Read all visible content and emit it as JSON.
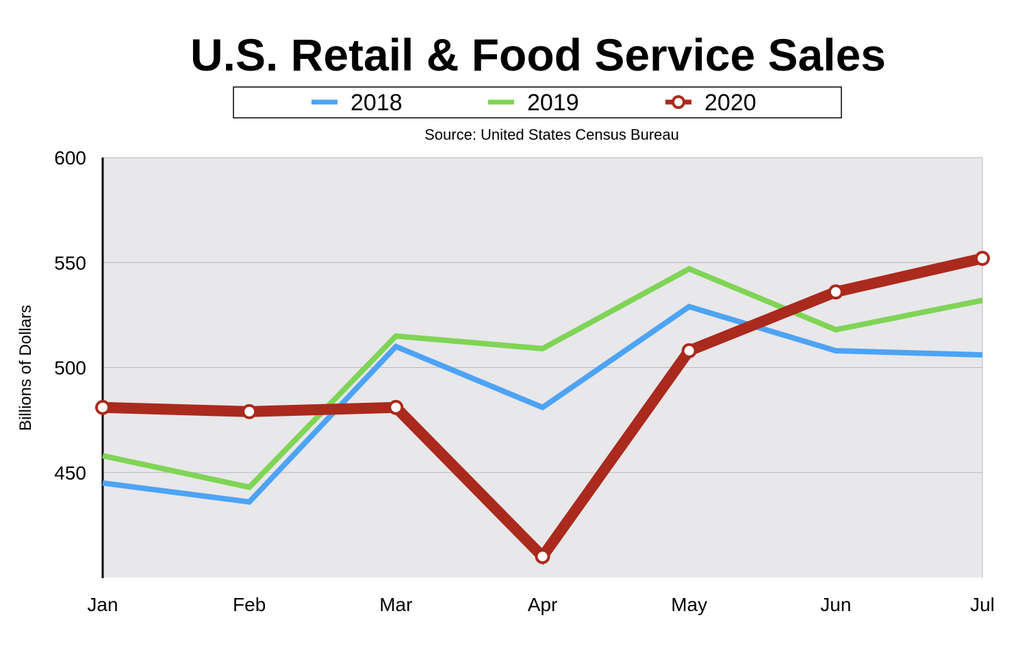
{
  "chart_data": {
    "type": "line",
    "title": "U.S. Retail & Food Service Sales",
    "subtitle": "Source: United States Census Bureau",
    "xlabel": "",
    "ylabel": "Billions of Dollars",
    "categories": [
      "Jan",
      "Feb",
      "Mar",
      "Apr",
      "May",
      "Jun",
      "Jul"
    ],
    "yticks": [
      "450",
      "500",
      "550",
      "600"
    ],
    "ylim": [
      400,
      600
    ],
    "grid": true,
    "legend_position": "top-center",
    "series": [
      {
        "name": "2018",
        "color": "#4da3f5",
        "markers": false,
        "values": [
          445,
          436,
          510,
          481,
          529,
          508,
          506
        ]
      },
      {
        "name": "2019",
        "color": "#7fd455",
        "markers": false,
        "values": [
          458,
          443,
          515,
          509,
          547,
          518,
          532
        ]
      },
      {
        "name": "2020",
        "color": "#aa2a1d",
        "markers": true,
        "values": [
          481,
          479,
          481,
          410,
          508,
          536,
          552
        ]
      }
    ]
  }
}
